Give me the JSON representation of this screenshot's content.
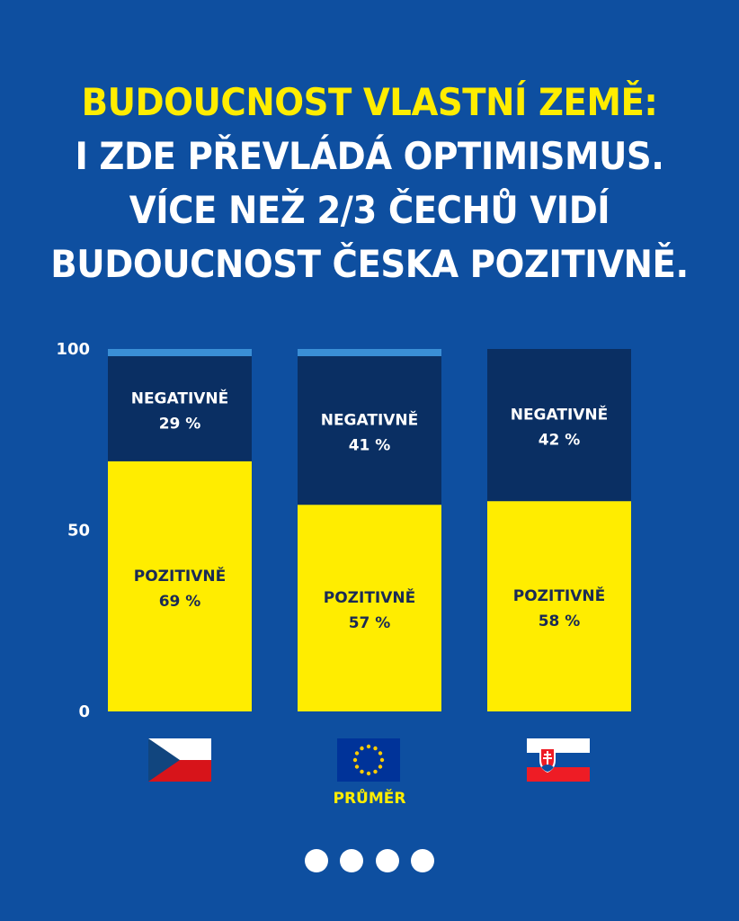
{
  "headline": {
    "line1": "BUDOUCNOST VLASTNÍ ZEMĚ:",
    "line2": "I ZDE PŘEVLÁDÁ OPTIMISMUS.",
    "line3": "VÍCE NEŽ 2/3 ČECHŮ VIDÍ",
    "line4": "BUDOUCNOST ČESKA POZITIVNĚ."
  },
  "colors": {
    "background": "#0e4fa0",
    "positive": "#ffed00",
    "negative": "#0a2f63",
    "remainder": "#3a8fd6",
    "text_dark": "#1a2a55"
  },
  "chart_data": {
    "type": "bar",
    "stacked": true,
    "categories": [
      "czech-flag",
      "eu-flag",
      "slovak-flag"
    ],
    "category_caption": [
      "",
      "PRŮMĚR",
      ""
    ],
    "ylim": [
      0,
      100
    ],
    "yticks": [
      "0",
      "50",
      "100"
    ],
    "grid": false,
    "series": [
      {
        "name": "POZITIVNĚ",
        "values": [
          69,
          57,
          58
        ],
        "labels": [
          "69 %",
          "57 %",
          "58 %"
        ]
      },
      {
        "name": "NEGATIVNĚ",
        "values": [
          29,
          41,
          42
        ],
        "labels": [
          "29 %",
          "41 %",
          "42 %"
        ]
      }
    ]
  },
  "flags": {
    "czech": "czech-flag-icon",
    "eu": "eu-flag-icon",
    "slovak": "slovak-flag-icon"
  },
  "pagination": {
    "count": 4
  }
}
